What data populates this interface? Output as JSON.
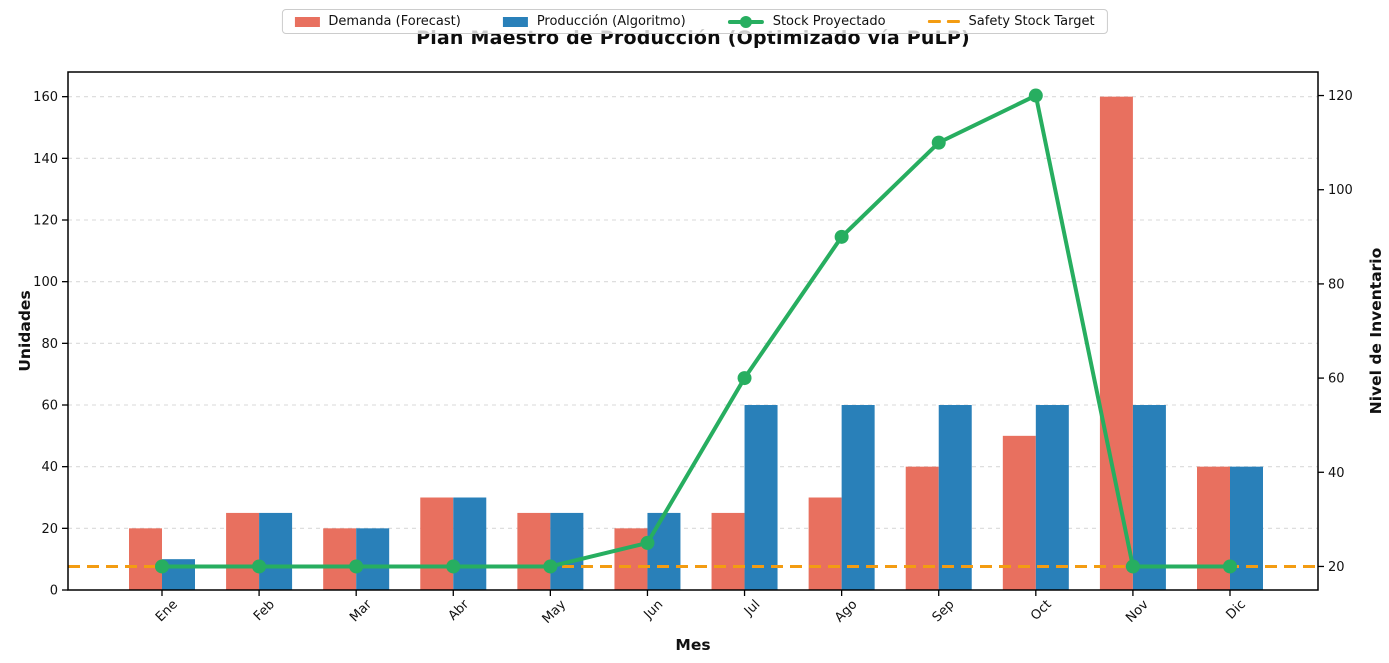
{
  "chart_data": {
    "type": "bar+line",
    "title": "Plan Maestro de Producción (Optimizado vía PuLP)",
    "xlabel": "Mes",
    "ylabel_left": "Unidades",
    "ylabel_right": "Nivel de Inventario",
    "categories": [
      "Ene",
      "Feb",
      "Mar",
      "Abr",
      "May",
      "Jun",
      "Jul",
      "Ago",
      "Sep",
      "Oct",
      "Nov",
      "Dic"
    ],
    "series": [
      {
        "name": "Demanda (Forecast)",
        "type": "bar",
        "axis": "left",
        "color": "#e8705f",
        "values": [
          20,
          25,
          20,
          30,
          25,
          20,
          25,
          30,
          40,
          50,
          160,
          40
        ]
      },
      {
        "name": "Producción (Algoritmo)",
        "type": "bar",
        "axis": "left",
        "color": "#2980b9",
        "values": [
          10,
          25,
          20,
          30,
          25,
          25,
          60,
          60,
          60,
          60,
          60,
          40
        ]
      },
      {
        "name": "Stock Proyectado",
        "type": "line",
        "axis": "right",
        "color": "#27ae60",
        "values": [
          20,
          20,
          20,
          20,
          20,
          25,
          60,
          90,
          110,
          120,
          20,
          20
        ]
      },
      {
        "name": "Safety Stock Target",
        "type": "hline",
        "axis": "right",
        "color": "#f39c12",
        "value": 20
      }
    ],
    "axes": {
      "left": {
        "lim": [
          0,
          168
        ],
        "ticks": [
          0,
          20,
          40,
          60,
          80,
          100,
          120,
          140,
          160
        ]
      },
      "right": {
        "lim": [
          15,
          125
        ],
        "ticks": [
          20,
          40,
          60,
          80,
          100,
          120
        ]
      }
    },
    "grid": "horizontal-dashed",
    "legend_position": "top-center"
  }
}
